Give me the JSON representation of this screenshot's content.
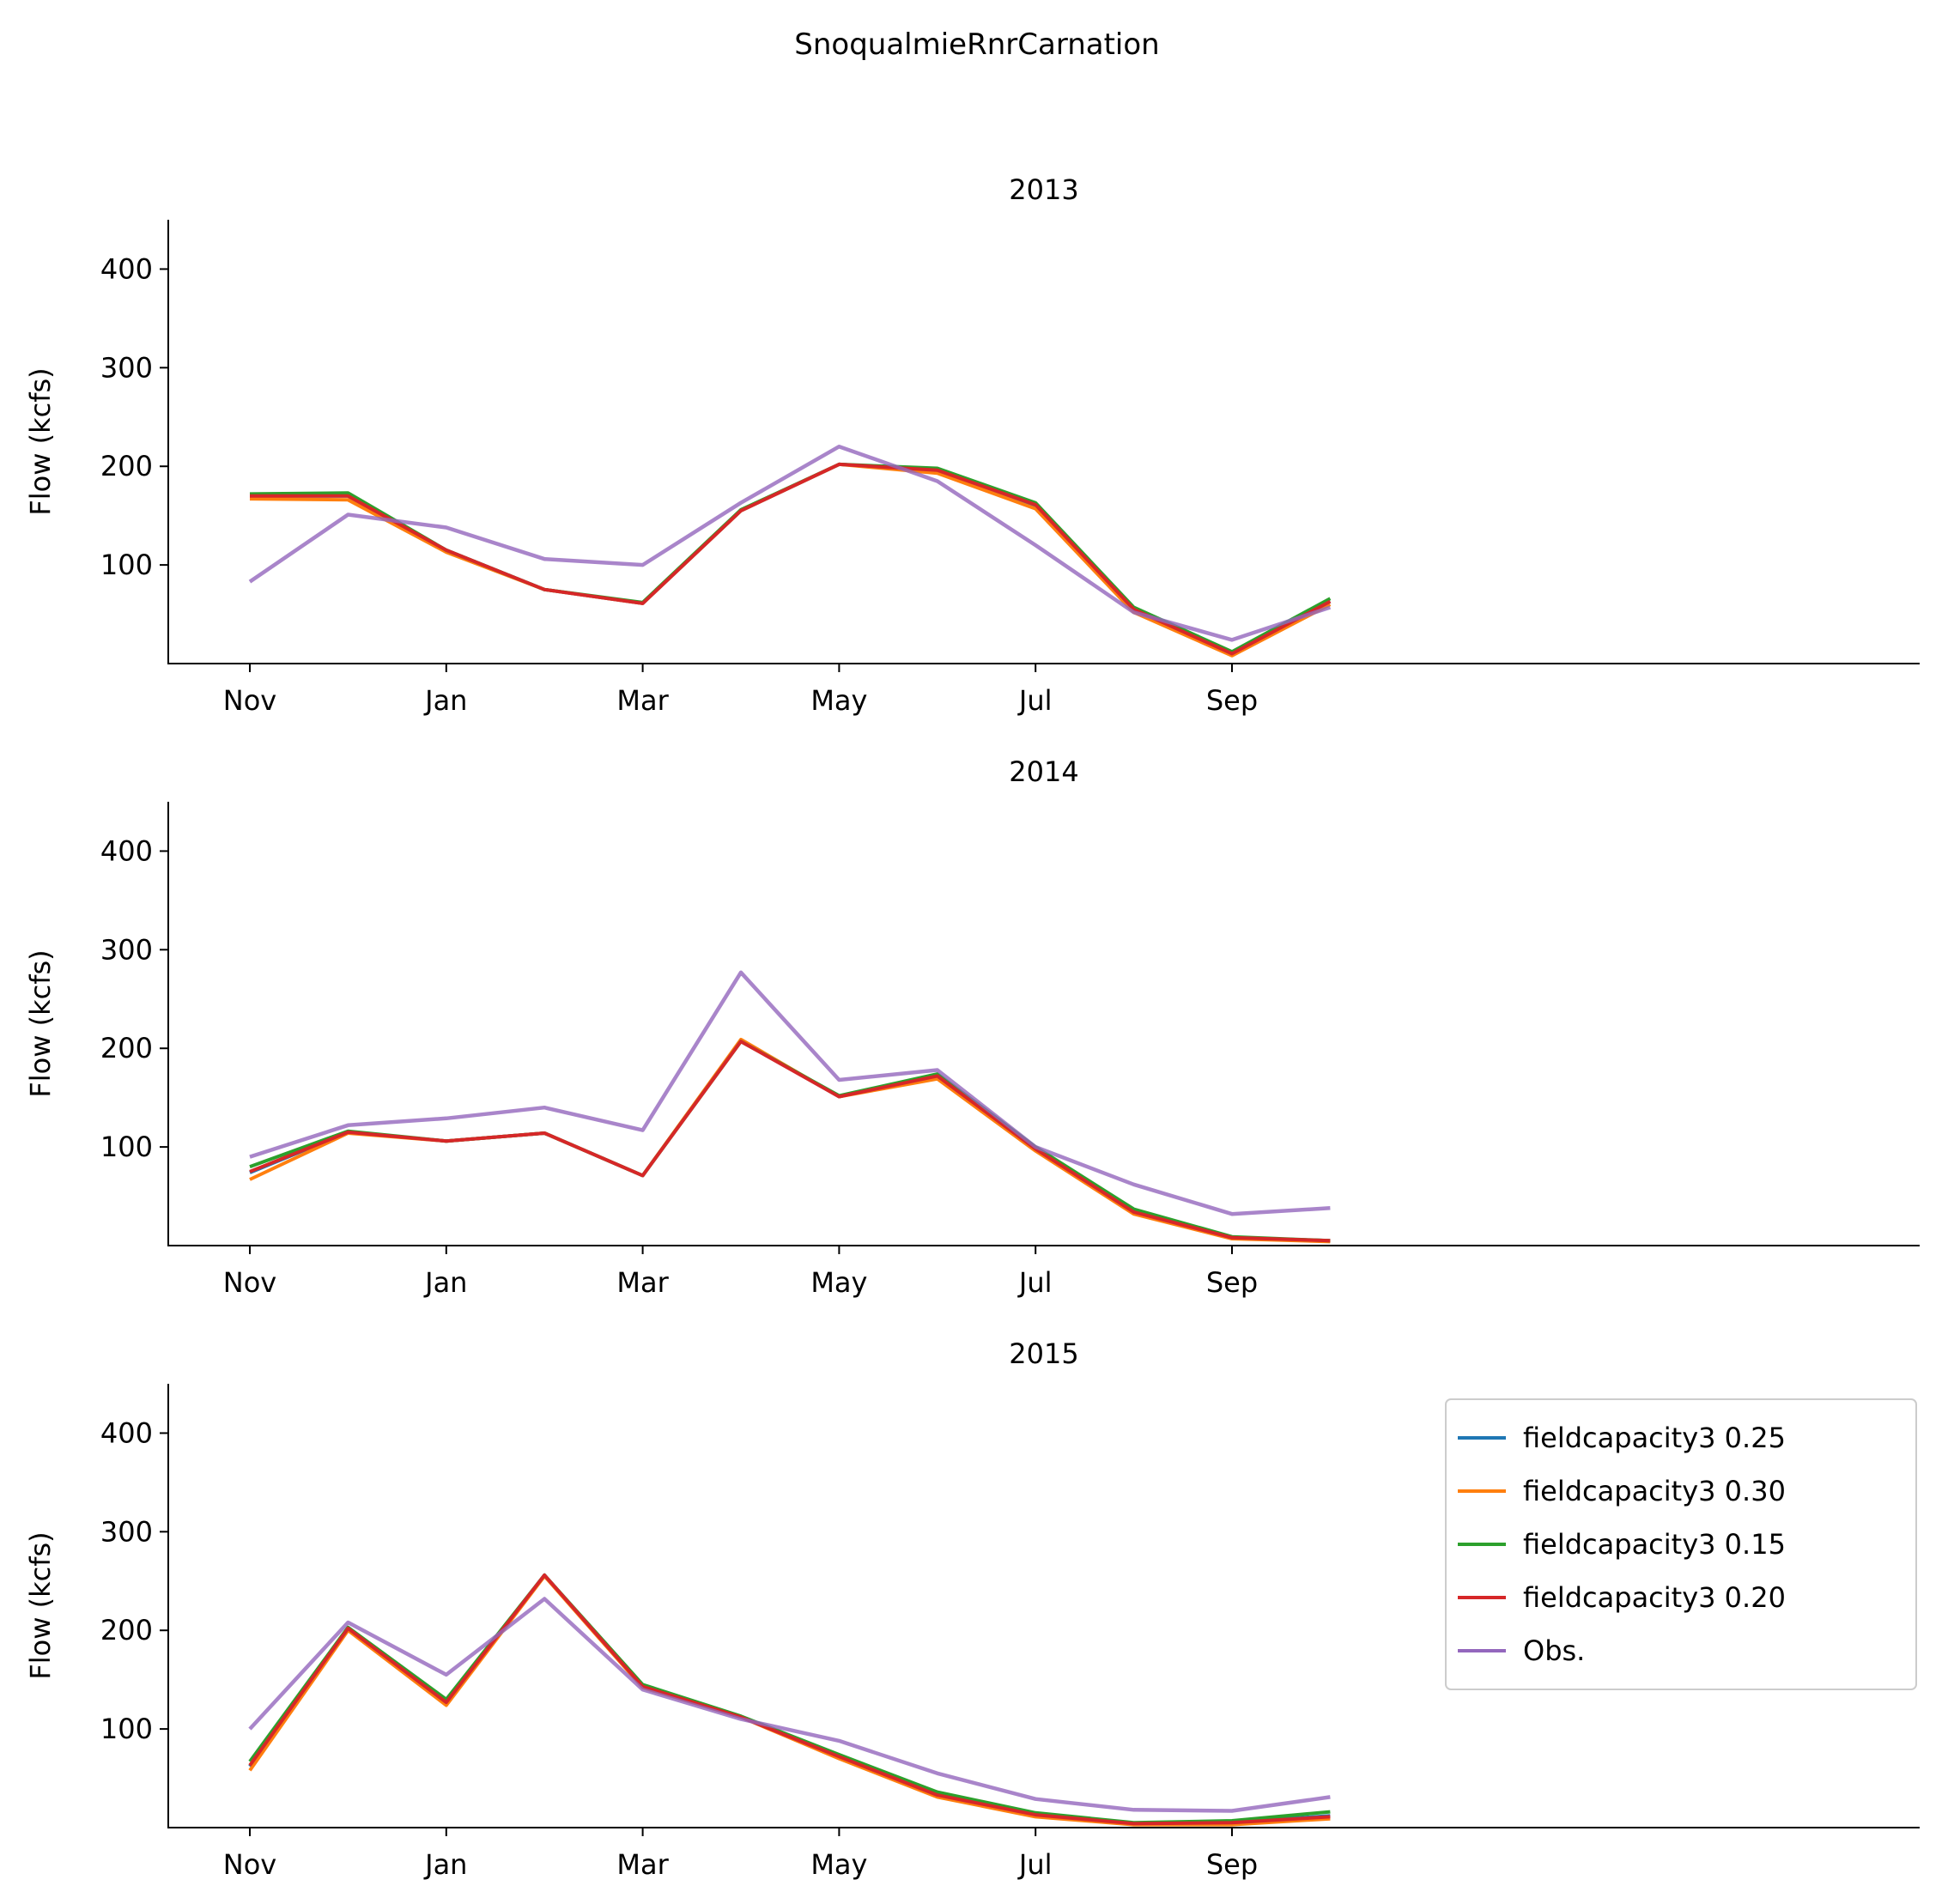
{
  "figure_title": "SnoqualmieRnrCarnation",
  "colors": {
    "fieldcapacity3 0.25": "#1f77b4",
    "fieldcapacity3 0.30": "#ff7f0e",
    "fieldcapacity3 0.15": "#2ca02c",
    "fieldcapacity3 0.20": "#d62728",
    "Obs.": "#9467bd"
  },
  "legend": {
    "placement": "upper right of last panel",
    "entries": [
      "fieldcapacity3 0.25",
      "fieldcapacity3 0.30",
      "fieldcapacity3 0.15",
      "fieldcapacity3 0.20",
      "Obs."
    ]
  },
  "chart_data": [
    {
      "type": "line",
      "title": "2013",
      "ylabel": "Flow (kcfs)",
      "xlabel": "",
      "ylim": [
        0,
        450
      ],
      "yticks": [
        100,
        200,
        300,
        400
      ],
      "xtick_labels": [
        "Nov",
        "Jan",
        "Mar",
        "May",
        "Jul",
        "Sep"
      ],
      "x": [
        "Nov",
        "Dec",
        "Jan",
        "Feb",
        "Mar",
        "Apr",
        "May",
        "Jun",
        "Jul",
        "Aug",
        "Sep",
        "Oct"
      ],
      "series": [
        {
          "name": "fieldcapacity3 0.25",
          "values": [
            170,
            170,
            115,
            75,
            61,
            155,
            202,
            196,
            160,
            55,
            10,
            63
          ]
        },
        {
          "name": "fieldcapacity3 0.30",
          "values": [
            167,
            166,
            113,
            75,
            61,
            155,
            202,
            193,
            157,
            52,
            8,
            60
          ]
        },
        {
          "name": "fieldcapacity3 0.15",
          "values": [
            172,
            173,
            115,
            75,
            62,
            156,
            202,
            198,
            163,
            57,
            12,
            66
          ]
        },
        {
          "name": "fieldcapacity3 0.20",
          "values": [
            170,
            170,
            115,
            75,
            61,
            155,
            202,
            196,
            161,
            55,
            10,
            63
          ]
        },
        {
          "name": "Obs.",
          "values": [
            83,
            151,
            138,
            106,
            100,
            163,
            220,
            185,
            120,
            52,
            24,
            57
          ]
        }
      ]
    },
    {
      "type": "line",
      "title": "2014",
      "ylabel": "Flow (kcfs)",
      "xlabel": "",
      "ylim": [
        0,
        450
      ],
      "yticks": [
        100,
        200,
        300,
        400
      ],
      "xtick_labels": [
        "Nov",
        "Jan",
        "Mar",
        "May",
        "Jul",
        "Sep"
      ],
      "x": [
        "Nov",
        "Dec",
        "Jan",
        "Feb",
        "Mar",
        "Apr",
        "May",
        "Jun",
        "Jul",
        "Aug",
        "Sep",
        "Oct"
      ],
      "series": [
        {
          "name": "fieldcapacity3 0.25",
          "values": [
            74,
            115,
            106,
            114,
            71,
            208,
            151,
            172,
            98,
            34,
            8,
            5
          ]
        },
        {
          "name": "fieldcapacity3 0.30",
          "values": [
            67,
            114,
            106,
            114,
            71,
            209,
            151,
            169,
            96,
            32,
            7,
            4
          ]
        },
        {
          "name": "fieldcapacity3 0.15",
          "values": [
            80,
            116,
            106,
            114,
            71,
            207,
            152,
            174,
            100,
            37,
            9,
            5
          ]
        },
        {
          "name": "fieldcapacity3 0.20",
          "values": [
            75,
            115,
            106,
            114,
            71,
            207,
            151,
            172,
            98,
            34,
            8,
            5
          ]
        },
        {
          "name": "Obs.",
          "values": [
            90,
            122,
            129,
            140,
            117,
            277,
            168,
            178,
            100,
            62,
            32,
            38
          ]
        }
      ]
    },
    {
      "type": "line",
      "title": "2015",
      "ylabel": "Flow (kcfs)",
      "xlabel": "",
      "ylim": [
        0,
        450
      ],
      "yticks": [
        100,
        200,
        300,
        400
      ],
      "xtick_labels": [
        "Nov",
        "Jan",
        "Mar",
        "May",
        "Jul",
        "Sep"
      ],
      "x": [
        "Nov",
        "Dec",
        "Jan",
        "Feb",
        "Mar",
        "Apr",
        "May",
        "Jun",
        "Jul",
        "Aug",
        "Sep",
        "Oct"
      ],
      "series": [
        {
          "name": "fieldcapacity3 0.25",
          "values": [
            62,
            202,
            127,
            256,
            143,
            112,
            72,
            33,
            13,
            4,
            5,
            12
          ]
        },
        {
          "name": "fieldcapacity3 0.30",
          "values": [
            58,
            200,
            124,
            255,
            142,
            112,
            70,
            31,
            11,
            3,
            3,
            9
          ]
        },
        {
          "name": "fieldcapacity3 0.15",
          "values": [
            67,
            203,
            130,
            256,
            145,
            113,
            74,
            36,
            15,
            5,
            7,
            16
          ]
        },
        {
          "name": "fieldcapacity3 0.20",
          "values": [
            63,
            202,
            127,
            256,
            143,
            112,
            72,
            33,
            13,
            4,
            5,
            11
          ]
        },
        {
          "name": "Obs.",
          "values": [
            100,
            208,
            155,
            232,
            140,
            110,
            88,
            55,
            29,
            18,
            17,
            31
          ]
        }
      ]
    }
  ]
}
